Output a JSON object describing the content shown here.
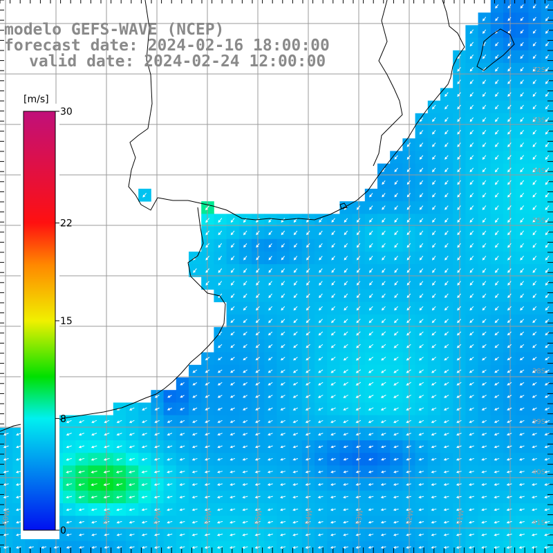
{
  "title": {
    "model": "modelo GEFS-WAVE (NCEP)",
    "forecast": "forecast date: 2024-02-16 18:00:00",
    "valid": "valid date: 2024-02-24 12:00:00"
  },
  "colorbar": {
    "unit": "[m/s]",
    "ticks": [
      {
        "value": 30,
        "label": "30"
      },
      {
        "value": 22,
        "label": "22"
      },
      {
        "value": 15,
        "label": "15"
      },
      {
        "value": 8,
        "label": "8"
      },
      {
        "value": 0,
        "label": "0"
      }
    ],
    "stops": [
      {
        "value": 0,
        "color": "#0010f0"
      },
      {
        "value": 8,
        "color": "#00f0f0"
      },
      {
        "value": 11,
        "color": "#00e000"
      },
      {
        "value": 15,
        "color": "#f0f000"
      },
      {
        "value": 19,
        "color": "#ff8800"
      },
      {
        "value": 22,
        "color": "#ff1010"
      },
      {
        "value": 30,
        "color": "#c0107a"
      }
    ],
    "min": 0,
    "max": 30
  },
  "lat_labels": [
    "32S",
    "33S",
    "34S",
    "35S",
    "38S",
    "39S",
    "40S",
    "41S"
  ],
  "lon_labels": [
    "60W",
    "59W",
    "58W",
    "57W",
    "56W",
    "55W",
    "54W",
    "53W",
    "52W",
    "51W"
  ],
  "colors": {
    "grid": "#9a9a9a",
    "coast": "#000000",
    "arrow": "#ffffff",
    "land": "#ffffff"
  },
  "field": {
    "variable": "wind speed and direction",
    "unit": "m/s"
  }
}
